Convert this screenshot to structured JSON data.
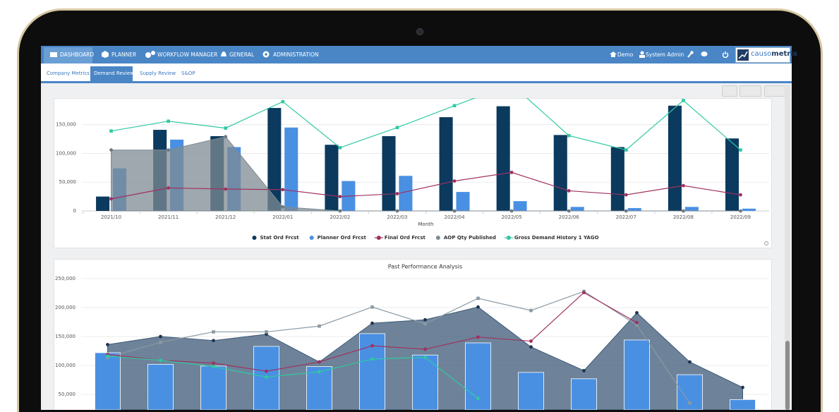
{
  "nav": {
    "items": [
      "DASHBOARD",
      "PLANNER",
      "WORKFLOW MANAGER",
      "GENERAL",
      "ADMINISTRATION"
    ],
    "user": [
      "Demo",
      "System Admin"
    ],
    "logo": [
      "causo",
      "metrix"
    ]
  },
  "tabs": [
    "Company Metrics",
    "Demand Review",
    "Supply Review",
    "S&OP"
  ],
  "chart_data": [
    {
      "type": "combo",
      "x_label": "Month",
      "categories": [
        "2021/10",
        "2021/11",
        "2021/12",
        "2022/01",
        "2022/02",
        "2022/03",
        "2022/04",
        "2022/05",
        "2022/06",
        "2022/07",
        "2022/08",
        "2022/09"
      ],
      "ylim": [
        0,
        195000
      ],
      "yticks": [
        0,
        {
          "value": 50000,
          "label": "50,000"
        },
        {
          "value": 100000,
          "label": "100,000"
        },
        {
          "value": 150000,
          "label": "150,000"
        }
      ],
      "grid": true,
      "legend": "bottom",
      "series": [
        {
          "name": "Stat Ord Frcst",
          "type": "bar",
          "color": "#0b3a5e",
          "values": [
            25000,
            141000,
            130000,
            179000,
            115000,
            130000,
            163000,
            182000,
            132000,
            111000,
            183000,
            126000
          ]
        },
        {
          "name": "Planner Ord Frcst",
          "type": "bar",
          "color": "#4a90e2",
          "values": [
            74000,
            124000,
            111000,
            145000,
            52000,
            61000,
            33000,
            17000,
            7000,
            5000,
            7000,
            4000
          ]
        },
        {
          "name": "Final Ord Frcst",
          "type": "line",
          "marker": "circle",
          "color": "#a0305f",
          "values": [
            21000,
            40000,
            38000,
            37000,
            25000,
            30000,
            52000,
            67000,
            35000,
            28000,
            44000,
            28000
          ]
        },
        {
          "name": "AOP Qty Published",
          "type": "area",
          "marker": "circle",
          "color": "#7d8b93",
          "values": [
            106000,
            106000,
            129000,
            7000,
            0,
            0,
            0,
            0,
            0,
            0,
            0,
            0
          ]
        },
        {
          "name": "Gross Demand History 1 YAGO",
          "type": "line",
          "marker": "square",
          "color": "#2fc9a3",
          "values": [
            139000,
            156000,
            144000,
            190000,
            110000,
            145000,
            183000,
            220000,
            131000,
            106000,
            192000,
            106000
          ]
        }
      ]
    },
    {
      "type": "combo",
      "title": "Past Performance Analysis",
      "categories": [
        null,
        null,
        null,
        null,
        null,
        null,
        null,
        null,
        null,
        null,
        null,
        null,
        null
      ],
      "ylim": [
        0,
        250000
      ],
      "yticks": [
        {
          "value": 50000,
          "label": "50,000"
        },
        {
          "value": 100000,
          "label": "100,000"
        },
        {
          "value": 150000,
          "label": "150,000"
        },
        {
          "value": 200000,
          "label": "200,000"
        },
        {
          "value": 250000,
          "label": "250,000"
        }
      ],
      "grid": true,
      "series": [
        {
          "type": "area",
          "marker": "circle",
          "color": "#3e5a77",
          "values": [
            136000,
            150000,
            143000,
            154000,
            106000,
            173000,
            179000,
            201000,
            132000,
            91000,
            191000,
            106000,
            62000
          ]
        },
        {
          "type": "bar",
          "color": "#4a90e2",
          "values": [
            122000,
            102000,
            99000,
            133000,
            98000,
            155000,
            118000,
            139000,
            88000,
            77000,
            144000,
            84000,
            41000
          ]
        },
        {
          "type": "line",
          "marker": "square",
          "color": "#8a9aa5",
          "values": [
            114000,
            140000,
            158000,
            158000,
            168000,
            201000,
            172000,
            216000,
            195000,
            228000,
            170000,
            35000,
            null
          ]
        },
        {
          "type": "line",
          "marker": "circle",
          "color": "#a0305f",
          "values": [
            119000,
            109000,
            104000,
            90000,
            106000,
            134000,
            128000,
            149000,
            142000,
            226000,
            174000,
            null,
            null
          ]
        },
        {
          "type": "line",
          "marker": "circle",
          "color": "#2fc9a3",
          "values": [
            116000,
            109000,
            98000,
            80000,
            89000,
            111000,
            114000,
            43000,
            null,
            null,
            null,
            null,
            null
          ]
        }
      ]
    }
  ]
}
